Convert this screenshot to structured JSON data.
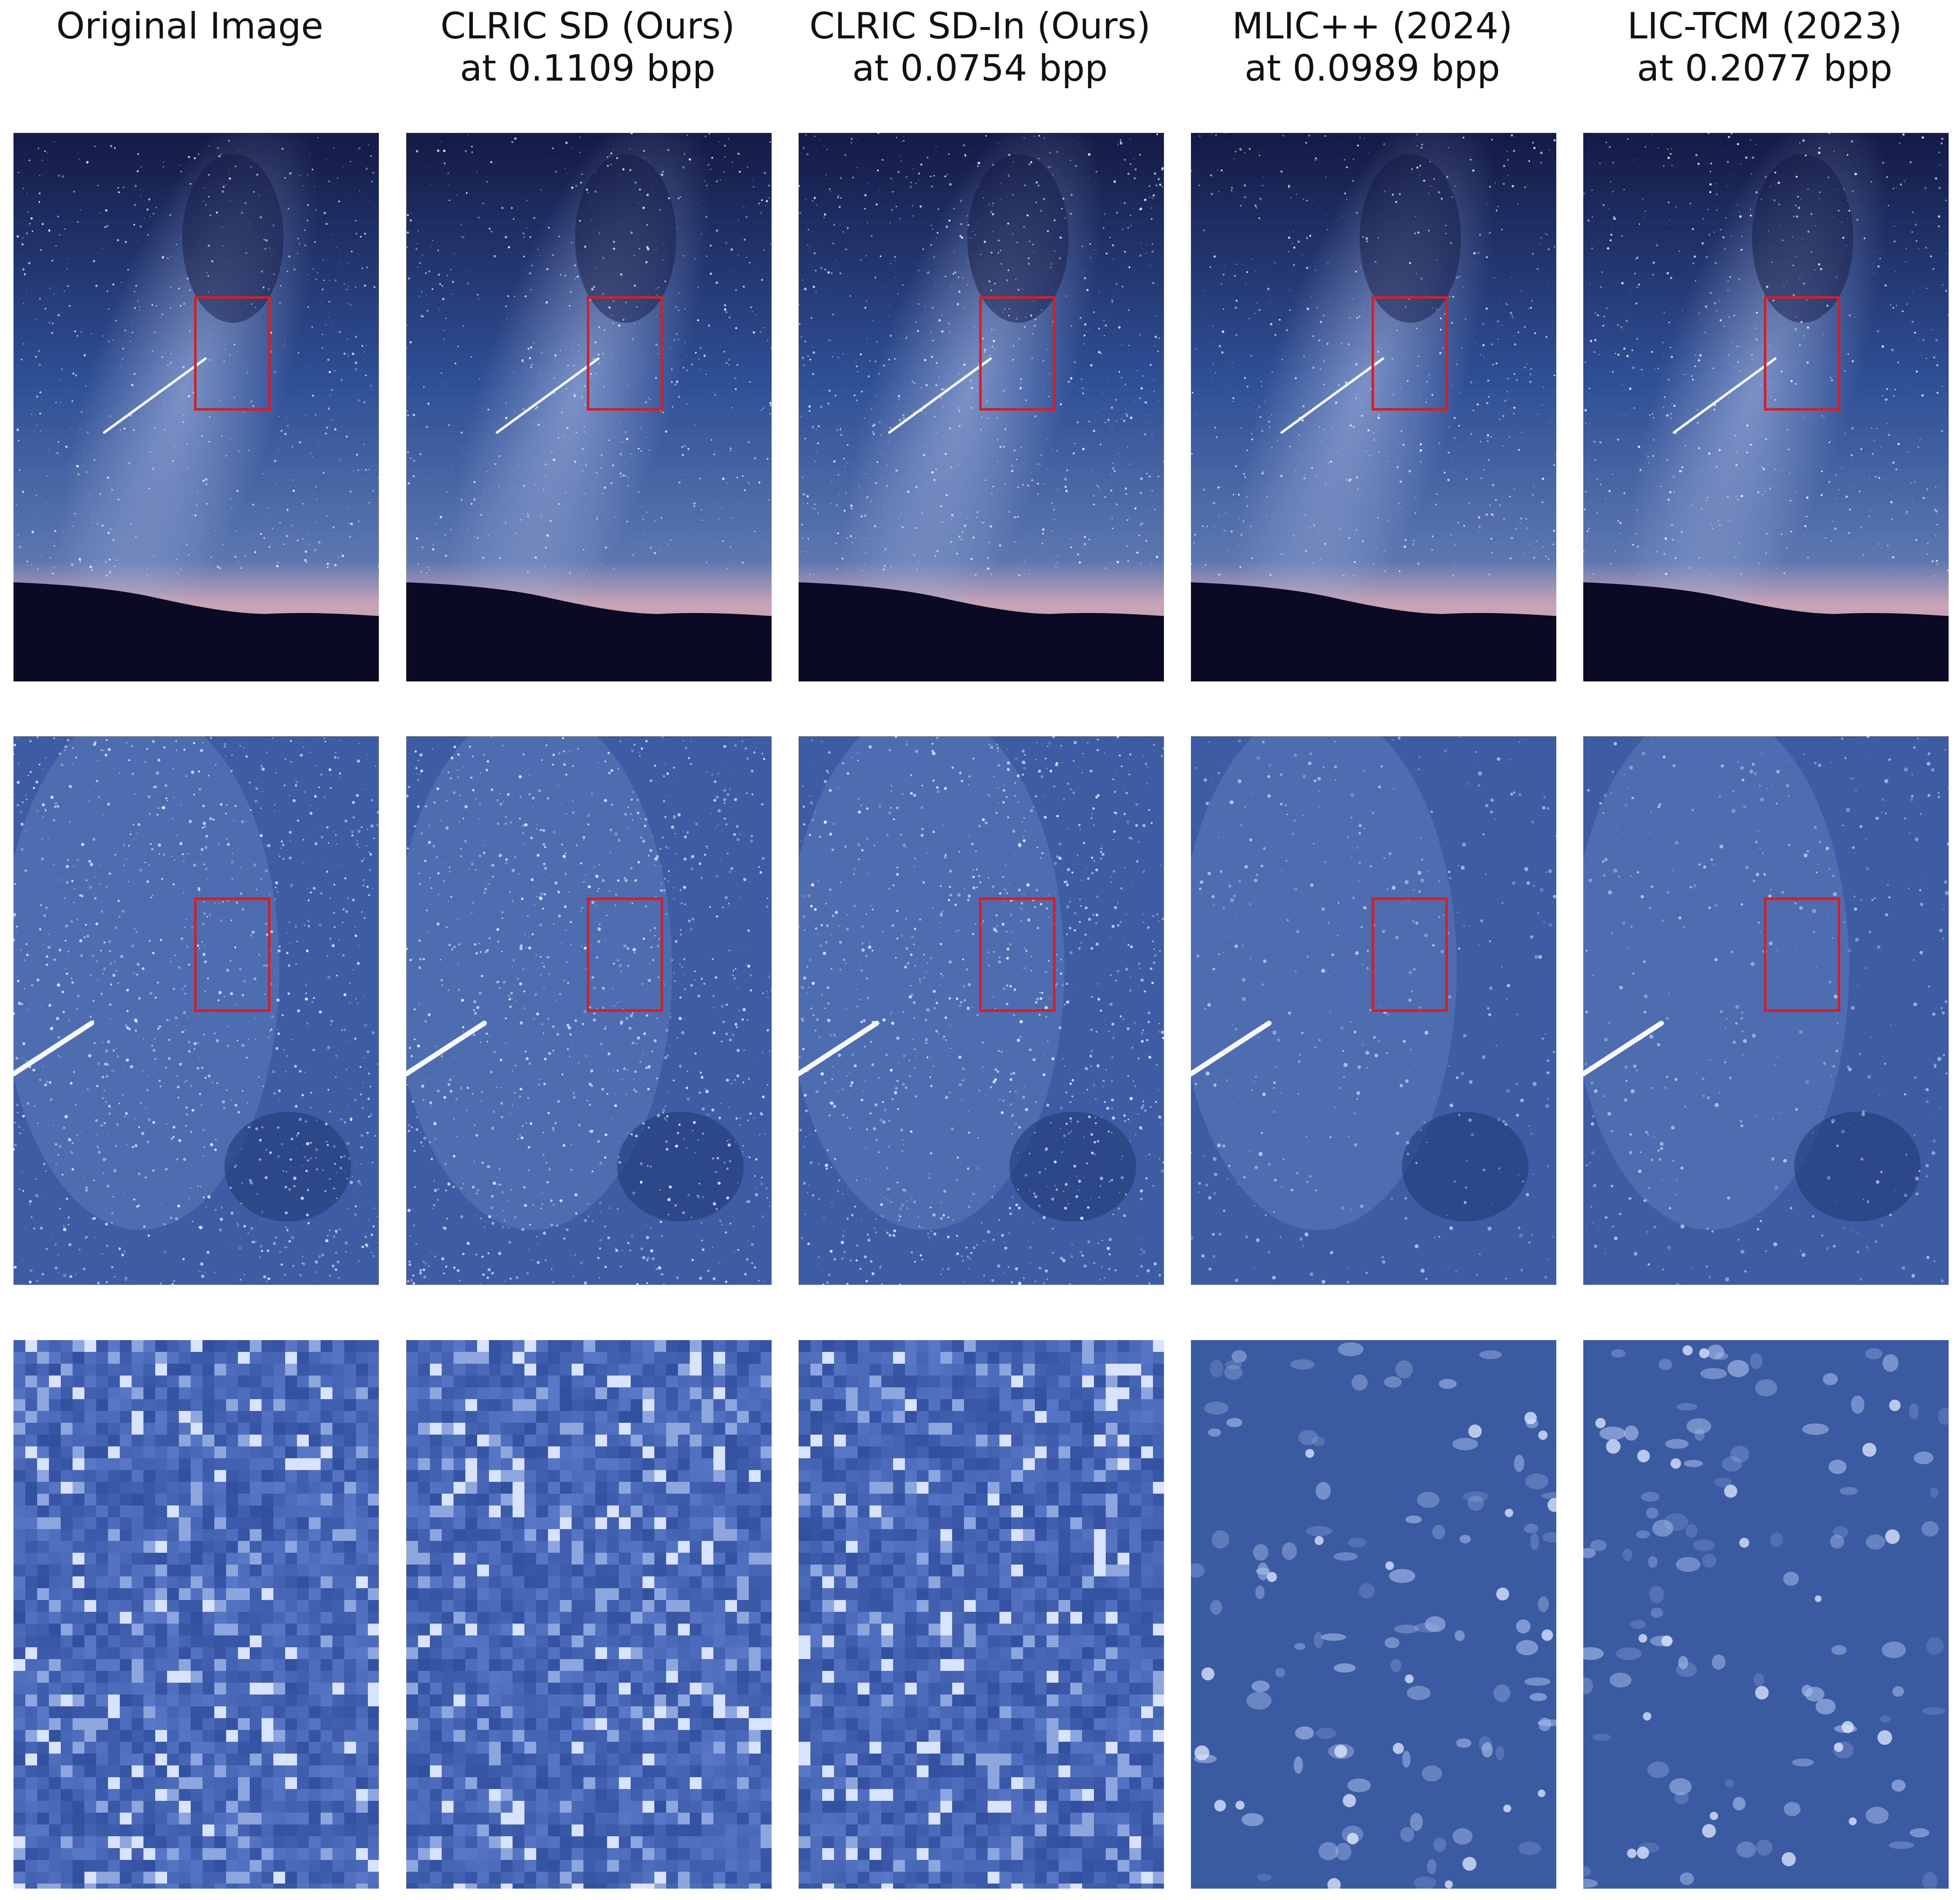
{
  "figure": {
    "columns": [
      {
        "title": "Original Image",
        "bpp": ""
      },
      {
        "title": "CLRIC SD (Ours)",
        "bpp": "at 0.1109 bpp"
      },
      {
        "title": "CLRIC SD-In (Ours)",
        "bpp": "at 0.0754 bpp"
      },
      {
        "title": "MLIC++ (2024)",
        "bpp": "at 0.0989 bpp"
      },
      {
        "title": "LIC-TCM (2023)",
        "bpp": "at 0.2077 bpp"
      }
    ],
    "rows": [
      "full-view",
      "zoom-level-1",
      "zoom-level-2"
    ],
    "colors": {
      "crop_box": "#d0202a",
      "sky_top": "#141a45",
      "sky_mid": "#2f4f95",
      "horizon_glow": "#c9a4b6",
      "ground": "#0a0a24",
      "zoom_bg": "#3a5aa2",
      "star": "#eaf2ff"
    }
  }
}
